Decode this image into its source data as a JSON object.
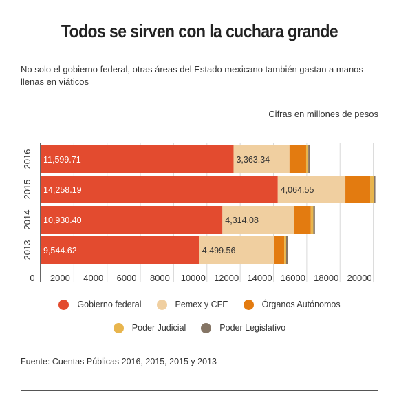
{
  "header": {
    "title": "Todos se sirven con la cuchara grande",
    "subtitle": "No solo el gobierno federal, otras áreas del Estado mexicano también gastan a manos llenas en viáticos",
    "units": "Cifras en millones de pesos"
  },
  "chart_data": {
    "type": "bar",
    "orientation": "horizontal",
    "stacked": true,
    "categories": [
      "2016",
      "2015",
      "2014",
      "2013"
    ],
    "series": [
      {
        "name": "Gobierno federal",
        "color": "#e34b2f",
        "values": [
          11599.71,
          14258.19,
          10930.4,
          9544.62
        ],
        "labels": [
          "11,599.71",
          "14,258.19",
          "10,930.40",
          "9,544.62"
        ]
      },
      {
        "name": "Pemex y CFE",
        "color": "#f0cfa0",
        "values": [
          3363.34,
          4064.55,
          4314.08,
          4499.56
        ],
        "labels": [
          "3,363.34",
          "4,064.55",
          "4,314.08",
          "4,499.56"
        ]
      },
      {
        "name": "Órganos Autónomos",
        "color": "#e37b10",
        "values": [
          1000,
          1500,
          1000,
          600
        ]
      },
      {
        "name": "Poder Judicial",
        "color": "#e8b54d",
        "values": [
          130,
          200,
          150,
          120
        ]
      },
      {
        "name": "Poder Legislativo",
        "color": "#857565",
        "values": [
          100,
          100,
          100,
          100
        ]
      }
    ],
    "xlim": [
      0,
      20000
    ],
    "xticks": [
      0,
      2000,
      4000,
      6000,
      8000,
      10000,
      12000,
      14000,
      16000,
      18000,
      20000
    ],
    "grid": true,
    "legend": "bottom"
  },
  "footer": {
    "source": "Fuente: Cuentas Públicas 2016, 2015, 2015 y 2013"
  }
}
